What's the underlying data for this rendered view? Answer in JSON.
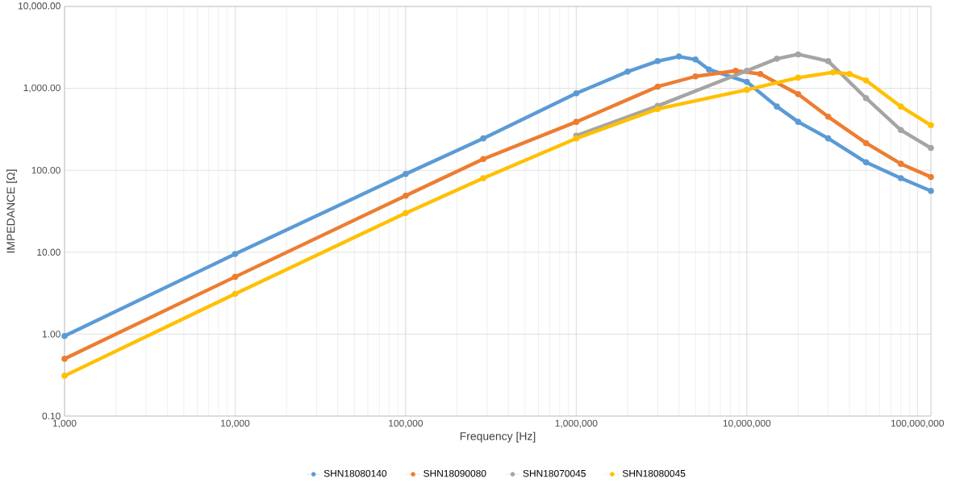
{
  "chart_data": {
    "type": "line",
    "xlabel": "Frequency [Hz]",
    "ylabel": "IMPEDANCE [Ω]",
    "log": "xy",
    "grid": true,
    "legend": "bottom",
    "marker": "circle",
    "line_style": "solid",
    "xlim": [
      1000,
      120000000
    ],
    "ylim": [
      0.1,
      10000
    ],
    "xticks": [
      {
        "value": 1000,
        "label": "1,000"
      },
      {
        "value": 10000,
        "label": "10,000"
      },
      {
        "value": 100000,
        "label": "100,000"
      },
      {
        "value": 1000000,
        "label": "1,000,000"
      },
      {
        "value": 10000000,
        "label": "10,000,000"
      },
      {
        "value": 100000000,
        "label": "100,000,000"
      }
    ],
    "yticks": [
      {
        "value": 0.1,
        "label": "0.10"
      },
      {
        "value": 1,
        "label": "1.00"
      },
      {
        "value": 10,
        "label": "10.00"
      },
      {
        "value": 100,
        "label": "100.00"
      },
      {
        "value": 1000,
        "label": "1,000.00"
      },
      {
        "value": 10000,
        "label": "10,000.00"
      }
    ],
    "series": [
      {
        "name": "SHN18080140",
        "color": "#5b9bd5",
        "x": [
          1000,
          10000,
          100000,
          285000,
          1000000,
          2000000,
          3000000,
          4000000,
          5000000,
          6000000,
          10000000,
          15000000,
          20000000,
          30000000,
          50000000,
          80000000,
          120000000
        ],
        "values": [
          0.95,
          9.5,
          90,
          245,
          870,
          1600,
          2150,
          2450,
          2250,
          1700,
          1200,
          600,
          390,
          245,
          125,
          80,
          56
        ]
      },
      {
        "name": "SHN18090080",
        "color": "#ed7d31",
        "x": [
          1000,
          10000,
          100000,
          285000,
          1000000,
          3000000,
          5000000,
          8600000,
          12000000,
          20000000,
          30000000,
          50000000,
          80000000,
          120000000
        ],
        "values": [
          0.5,
          5,
          49,
          137,
          390,
          1050,
          1400,
          1640,
          1500,
          850,
          450,
          215,
          120,
          83
        ]
      },
      {
        "name": "SHN18070045",
        "color": "#a5a5a5",
        "x": [
          1000000,
          3000000,
          10000000,
          15000000,
          20000000,
          30000000,
          50000000,
          80000000,
          120000000
        ],
        "values": [
          265,
          610,
          1640,
          2300,
          2600,
          2150,
          760,
          310,
          187
        ]
      },
      {
        "name": "SHN18080045",
        "color": "#ffc000",
        "x": [
          1000,
          10000,
          100000,
          285000,
          1000000,
          3000000,
          10000000,
          20000000,
          32000000,
          40000000,
          50000000,
          80000000,
          120000000
        ],
        "values": [
          0.31,
          3.1,
          30,
          80,
          245,
          560,
          960,
          1350,
          1570,
          1500,
          1250,
          600,
          355
        ]
      }
    ]
  }
}
